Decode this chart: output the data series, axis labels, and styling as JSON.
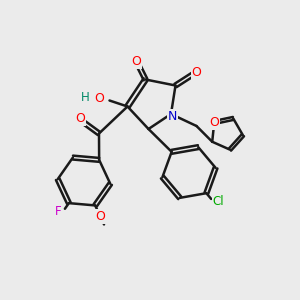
{
  "bg_color": "#ebebeb",
  "bond_color": "#1a1a1a",
  "bond_width": 1.8,
  "atom_colors": {
    "O": "#ff0000",
    "N": "#0000cc",
    "F": "#cc00cc",
    "Cl": "#00aa00",
    "H": "#008866"
  },
  "fig_size": [
    3.0,
    3.0
  ],
  "dpi": 100
}
